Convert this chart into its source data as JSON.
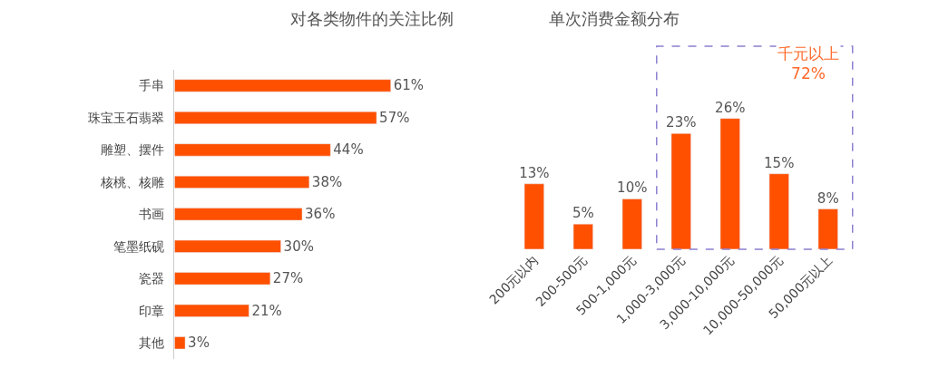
{
  "chart_data": [
    {
      "type": "bar",
      "title": "对各类物件的关注比例",
      "orientation": "horizontal",
      "categories": [
        "手串",
        "珠宝玉石翡翠",
        "雕塑、摆件",
        "核桃、核雕",
        "书画",
        "笔墨纸砚",
        "瓷器",
        "印章",
        "其他"
      ],
      "values": [
        61,
        57,
        44,
        38,
        36,
        30,
        27,
        21,
        3
      ],
      "value_labels": [
        "61%",
        "57%",
        "44%",
        "38%",
        "36%",
        "30%",
        "27%",
        "21%",
        "3%"
      ],
      "color": "#ff5000",
      "legend": false
    },
    {
      "type": "bar",
      "title": "单次消费金额分布",
      "categories": [
        "200元以内",
        "200-500元",
        "500-1,000元",
        "1,000-3,000元",
        "3,000-10,000元",
        "10,000-50,000元",
        "50,000元以上"
      ],
      "values": [
        13,
        5,
        10,
        23,
        26,
        15,
        8
      ],
      "value_labels": [
        "13%",
        "5%",
        "10%",
        "23%",
        "26%",
        "15%",
        "8%"
      ],
      "color": "#ff5000",
      "legend": false,
      "annotations": [
        "千元以上\n72%"
      ]
    }
  ]
}
